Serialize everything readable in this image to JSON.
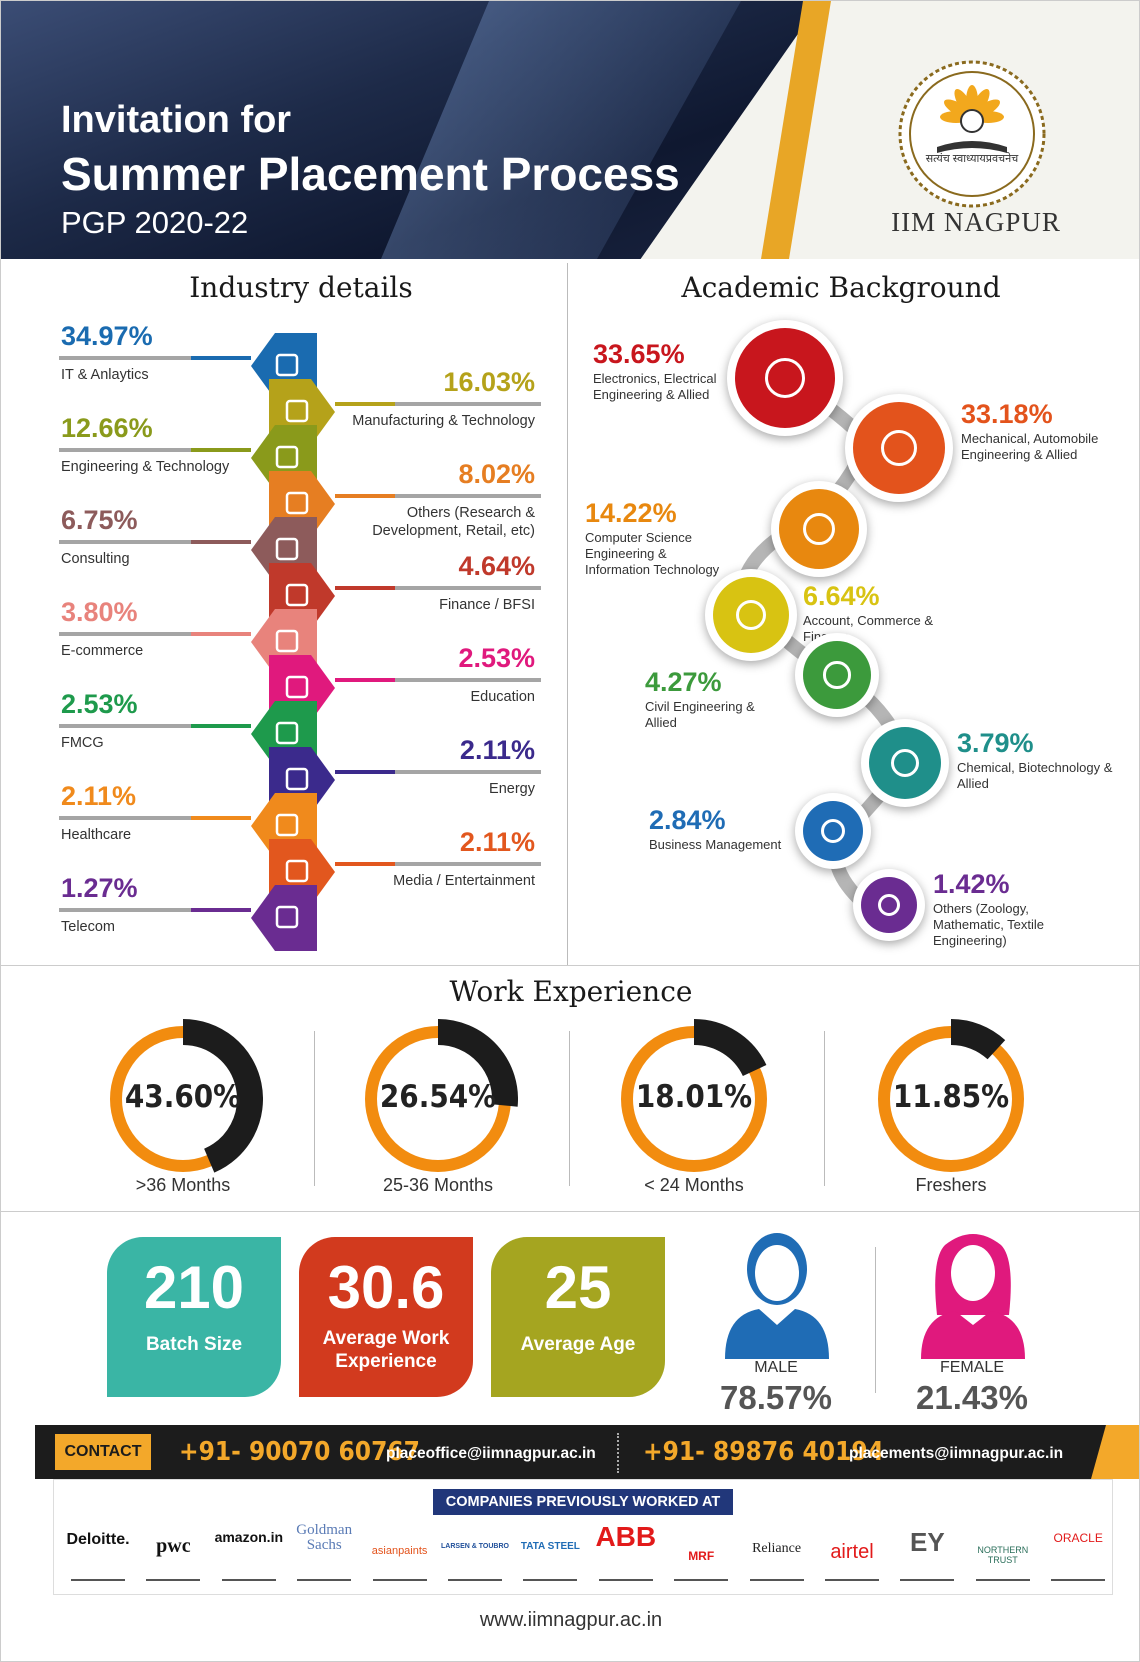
{
  "header": {
    "line1": "Invitation for",
    "line2": "Summer Placement Process",
    "line3": "PGP 2020-22",
    "logo_text": "IIM NAGPUR",
    "logo_motto": "सत्यंच स्वाध्यायप्रवचनेच"
  },
  "industry": {
    "title": "Industry details",
    "items": [
      {
        "pct": "34.97%",
        "label": "IT & Anlaytics",
        "color": "#1a6bb0",
        "icon": "analytics-icon"
      },
      {
        "pct": "16.03%",
        "label": "Manufacturing & Technology",
        "color": "#b5a21a",
        "icon": "factory-icon"
      },
      {
        "pct": "12.66%",
        "label": "Engineering & Technology",
        "color": "#8a9a1b",
        "icon": "engineer-icon"
      },
      {
        "pct": "8.02%",
        "label": "Others (Research & Development, Retail, etc)",
        "color": "#e67e22",
        "icon": "research-icon"
      },
      {
        "pct": "6.75%",
        "label": "Consulting",
        "color": "#8d5b5b",
        "icon": "consulting-icon"
      },
      {
        "pct": "4.64%",
        "label": "Finance / BFSI",
        "color": "#c0392b",
        "icon": "finance-chart-icon"
      },
      {
        "pct": "3.80%",
        "label": "E-commerce",
        "color": "#e8837c",
        "icon": "ecommerce-icon"
      },
      {
        "pct": "2.53%",
        "label": "Education",
        "color": "#e0197d",
        "icon": "education-icon"
      },
      {
        "pct": "2.53%",
        "label": "FMCG",
        "color": "#1e9a4c",
        "icon": "people-icon"
      },
      {
        "pct": "2.11%",
        "label": "Energy",
        "color": "#3b2a8c",
        "icon": "energy-icon"
      },
      {
        "pct": "2.11%",
        "label": "Healthcare",
        "color": "#f08a1c",
        "icon": "healthcare-icon"
      },
      {
        "pct": "2.11%",
        "label": "Media / Entertainment",
        "color": "#e2571e",
        "icon": "media-icon"
      },
      {
        "pct": "1.27%",
        "label": "Telecom",
        "color": "#6a2c91",
        "icon": "telecom-icon"
      }
    ]
  },
  "academic": {
    "title": "Academic Background",
    "items": [
      {
        "pct": "33.65%",
        "label": "Electronics, Electrical Engineering & Allied",
        "color": "#c8161d",
        "icon": "electrical-icon"
      },
      {
        "pct": "33.18%",
        "label": "Mechanical, Automobile Engineering & Allied",
        "color": "#e3531c",
        "icon": "gears-icon"
      },
      {
        "pct": "14.22%",
        "label": "Computer Science Engineering & Information Technology",
        "color": "#e8880f",
        "icon": "computer-icon"
      },
      {
        "pct": "6.64%",
        "label": "Account, Commerce & Finance",
        "color": "#d8c312",
        "icon": "finance-icon"
      },
      {
        "pct": "4.27%",
        "label": "Civil Engineering & Allied",
        "color": "#3c9a3c",
        "icon": "hardhat-icon"
      },
      {
        "pct": "3.79%",
        "label": "Chemical, Biotechnology & Allied",
        "color": "#1f8f8a",
        "icon": "flask-icon"
      },
      {
        "pct": "2.84%",
        "label": "Business Management",
        "color": "#1f6cb5",
        "icon": "business-icon"
      },
      {
        "pct": "1.42%",
        "label": "Others (Zoology, Mathematic, Textile Engineering)",
        "color": "#6a2c91",
        "icon": "document-icon"
      }
    ]
  },
  "work": {
    "title": "Work Experience",
    "items": [
      {
        "value": "43.60%",
        "label": ">36 Months",
        "fraction": 0.436
      },
      {
        "value": "26.54%",
        "label": "25-36 Months",
        "fraction": 0.2654
      },
      {
        "value": "18.01%",
        "label": "< 24 Months",
        "fraction": 0.1801
      },
      {
        "value": "11.85%",
        "label": "Freshers",
        "fraction": 0.1185
      }
    ]
  },
  "stats": {
    "batch": {
      "num": "210",
      "label": "Batch Size",
      "color": "#3ab5a5"
    },
    "work_exp": {
      "num": "30.6",
      "label": "Average Work Experience",
      "color": "#d23a1e"
    },
    "age": {
      "num": "25",
      "label": "Average Age",
      "color": "#a5a520"
    },
    "male": {
      "label": "MALE",
      "pct": "78.57%",
      "color": "#1f6cb5"
    },
    "female": {
      "label": "FEMALE",
      "pct": "21.43%",
      "color": "#e0197d"
    }
  },
  "contact": {
    "tab": "CONTACT",
    "phone1": "+91- 90070 60767",
    "email1": "placeoffice@iimnagpur.ac.in",
    "phone2": "+91- 89876 40194",
    "email2": "placements@iimnagpur.ac.in"
  },
  "companies": {
    "banner": "COMPANIES PREVIOUSLY WORKED AT",
    "logos": [
      "Deloitte.",
      "pwc",
      "amazon.in",
      "Goldman Sachs",
      "asianpaints",
      "LARSEN & TOUBRO",
      "TATA STEEL",
      "ABB",
      "MRF",
      "Reliance",
      "airtel",
      "EY",
      "NORTHERN TRUST",
      "ORACLE"
    ]
  },
  "footer": {
    "url": "www.iimnagpur.ac.in"
  }
}
